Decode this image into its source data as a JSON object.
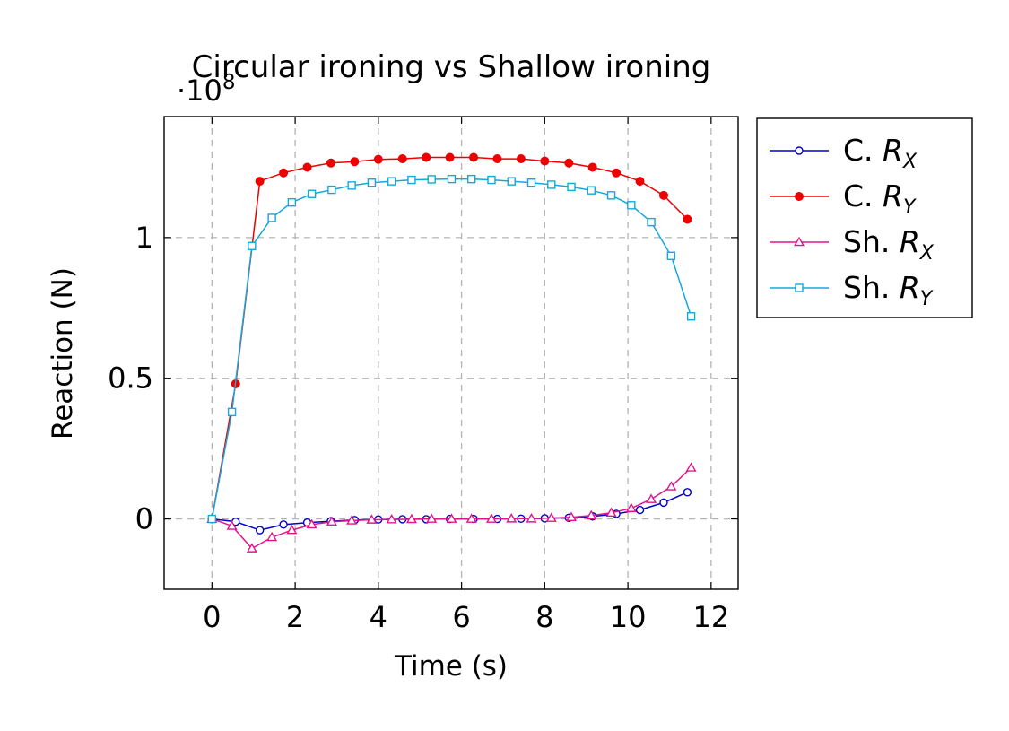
{
  "chart_data": {
    "type": "line",
    "title": "Circular ironing vs Shallow ironing",
    "y_multiplier": {
      "base": "·10",
      "exponent": "8"
    },
    "xlabel": "Time (s)",
    "ylabel": "Reaction (N)",
    "xlim": [
      -1.15,
      12.65
    ],
    "ylim": [
      -0.25,
      1.43
    ],
    "x_ticks": [
      0,
      2,
      4,
      6,
      8,
      10,
      12
    ],
    "x_tick_labels": [
      "0",
      "2",
      "4",
      "6",
      "8",
      "10",
      "12"
    ],
    "y_ticks": [
      0,
      0.5,
      1
    ],
    "y_tick_labels": [
      "0",
      "0.5",
      "1"
    ],
    "grid": true,
    "legend_position": "outside-right-top",
    "series": [
      {
        "name_prefix": "C.",
        "name_var": "R",
        "name_sub": "X",
        "color": "#0000cc",
        "marker": "circle-open",
        "x": [
          0,
          0.57,
          1.15,
          1.72,
          2.29,
          2.86,
          3.43,
          4.0,
          4.58,
          5.15,
          5.72,
          6.29,
          6.86,
          7.43,
          8.0,
          8.58,
          9.15,
          9.72,
          10.29,
          10.86,
          11.43
        ],
        "y": [
          0,
          -0.01,
          -0.04,
          -0.02,
          -0.013,
          -0.008,
          -0.004,
          -0.002,
          -0.001,
          -0.001,
          0,
          0,
          0,
          0.001,
          0.002,
          0.004,
          0.009,
          0.018,
          0.032,
          0.058,
          0.095
        ]
      },
      {
        "name_prefix": "C.",
        "name_var": "R",
        "name_sub": "Y",
        "color": "#ee0000",
        "marker": "circle-filled",
        "x": [
          0,
          0.57,
          1.15,
          1.72,
          2.29,
          2.86,
          3.43,
          4.0,
          4.58,
          5.15,
          5.72,
          6.29,
          6.86,
          7.43,
          8.0,
          8.58,
          9.15,
          9.72,
          10.29,
          10.86,
          11.43
        ],
        "y": [
          0,
          0.48,
          1.2,
          1.23,
          1.25,
          1.265,
          1.27,
          1.278,
          1.28,
          1.285,
          1.285,
          1.285,
          1.28,
          1.28,
          1.272,
          1.265,
          1.25,
          1.23,
          1.2,
          1.15,
          1.065
        ]
      },
      {
        "name_prefix": "Sh.",
        "name_var": "R",
        "name_sub": "X",
        "color": "#e0158c",
        "marker": "triangle-open",
        "x": [
          0,
          0.48,
          0.96,
          1.44,
          1.92,
          2.4,
          2.88,
          3.36,
          3.84,
          4.32,
          4.8,
          5.28,
          5.76,
          6.24,
          6.72,
          7.2,
          7.68,
          8.16,
          8.64,
          9.12,
          9.6,
          10.08,
          10.56,
          11.04,
          11.52
        ],
        "y": [
          0,
          -0.025,
          -0.105,
          -0.065,
          -0.04,
          -0.02,
          -0.01,
          -0.006,
          -0.003,
          -0.002,
          -0.001,
          0,
          0,
          0,
          0,
          0.001,
          0.001,
          0.003,
          0.006,
          0.012,
          0.022,
          0.038,
          0.07,
          0.115,
          0.182
        ]
      },
      {
        "name_prefix": "Sh.",
        "name_var": "R",
        "name_sub": "Y",
        "color": "#14a8dc",
        "marker": "square-open",
        "x": [
          0,
          0.48,
          0.96,
          1.44,
          1.92,
          2.4,
          2.88,
          3.36,
          3.84,
          4.32,
          4.8,
          5.28,
          5.76,
          6.24,
          6.72,
          7.2,
          7.68,
          8.16,
          8.64,
          9.12,
          9.6,
          10.08,
          10.56,
          11.04,
          11.52
        ],
        "y": [
          0,
          0.38,
          0.97,
          1.07,
          1.125,
          1.155,
          1.17,
          1.185,
          1.195,
          1.2,
          1.205,
          1.207,
          1.208,
          1.208,
          1.205,
          1.2,
          1.195,
          1.188,
          1.18,
          1.168,
          1.15,
          1.115,
          1.055,
          0.935,
          0.72
        ]
      }
    ]
  }
}
